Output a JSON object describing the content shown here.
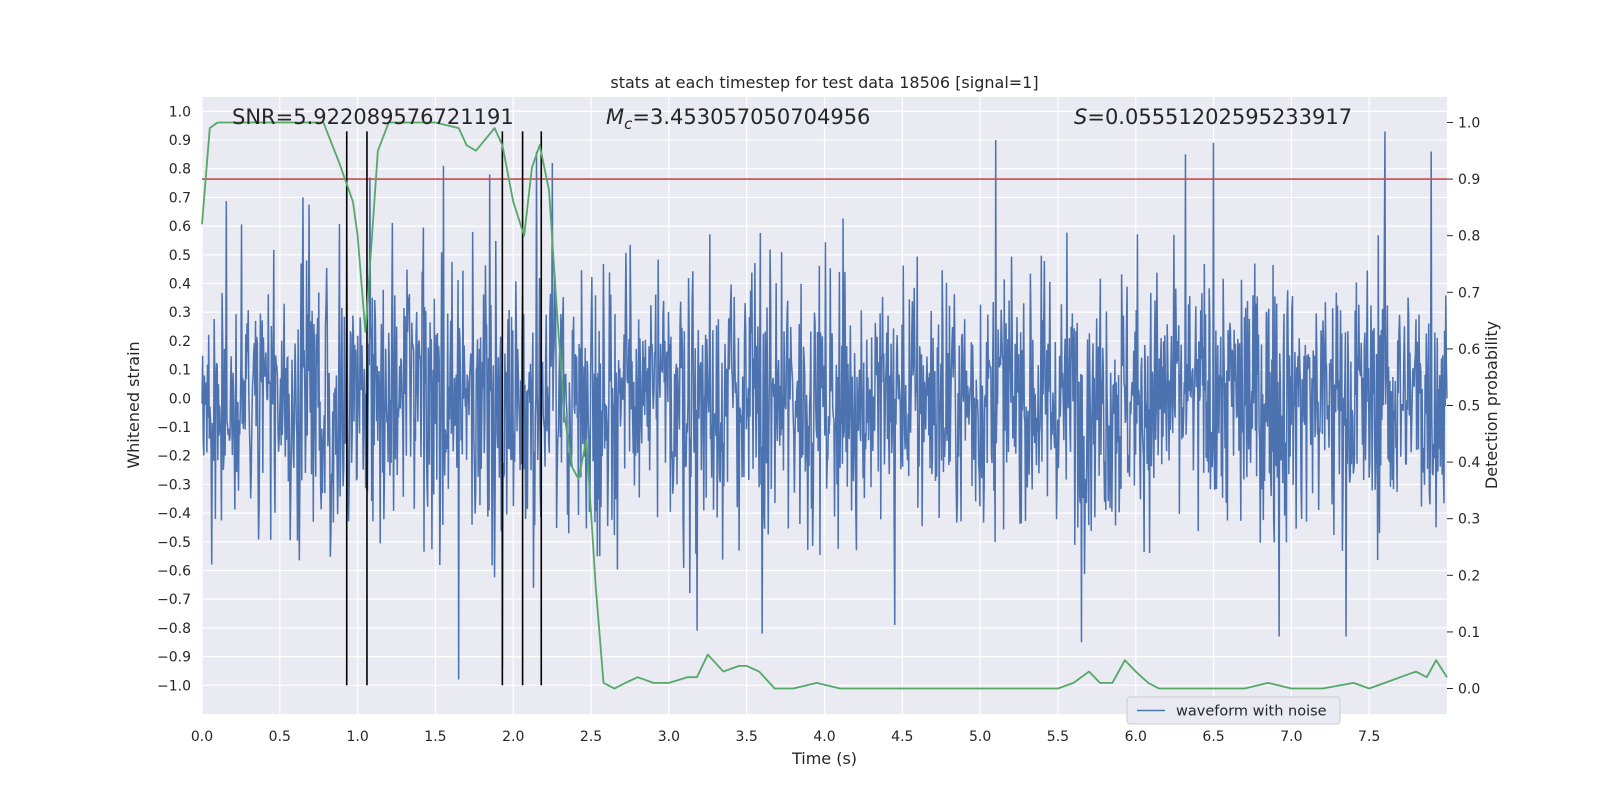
{
  "chart_data": {
    "type": "line",
    "title": "stats at each timestep for test data 18506 [signal=1]",
    "xlabel": "Time (s)",
    "ylabel": "Whitened strain",
    "y2label": "Detection probability",
    "xlim": [
      0,
      8
    ],
    "ylim": [
      -1.1,
      1.05
    ],
    "y2lim": [
      -0.045,
      1.045
    ],
    "x_ticks": [
      "0.0",
      "0.5",
      "1.0",
      "1.5",
      "2.0",
      "2.5",
      "3.0",
      "3.5",
      "4.0",
      "4.5",
      "5.0",
      "5.5",
      "6.0",
      "6.5",
      "7.0",
      "7.5"
    ],
    "y_ticks": [
      "1.0",
      "0.9",
      "0.8",
      "0.7",
      "0.6",
      "0.5",
      "0.4",
      "0.3",
      "0.2",
      "0.1",
      "0.0",
      "-0.1",
      "-0.2",
      "-0.3",
      "-0.4",
      "-0.5",
      "-0.6",
      "-0.7",
      "-0.8",
      "-0.9",
      "-1.0"
    ],
    "y2_ticks": [
      "1.0",
      "0.9",
      "0.8",
      "0.7",
      "0.6",
      "0.5",
      "0.4",
      "0.3",
      "0.2",
      "0.1",
      "0.0"
    ],
    "grid": true,
    "legend_position": "lower-right",
    "colors": {
      "waveform": "#4c72b0",
      "probability": "#55a868",
      "threshold": "#c44e52",
      "event_lines": "#000000",
      "axes_bg": "#eaeaf2",
      "grid": "#ffffff"
    },
    "annotations": {
      "snr": "SNR=5.922089576721191",
      "mc_symbol": "M",
      "mc_sub": "c",
      "mc_value": "=3.453057050704956",
      "s_symbol": "S",
      "s_value": "=0.05551202595233917"
    },
    "series": [
      {
        "name": "waveform with noise",
        "axis": "left",
        "duration": 8,
        "samples": 2048,
        "typical_envelope": 0.45,
        "peaks": [
          {
            "x": 0.65,
            "y": 0.7
          },
          {
            "x": 1.08,
            "y": 0.77
          },
          {
            "x": 1.55,
            "y": 0.81
          },
          {
            "x": 1.65,
            "y": -0.98
          },
          {
            "x": 1.85,
            "y": 0.78
          },
          {
            "x": 1.93,
            "y": -0.94
          },
          {
            "x": 2.15,
            "y": 0.86
          },
          {
            "x": 2.25,
            "y": 0.82
          },
          {
            "x": 3.18,
            "y": -0.81
          },
          {
            "x": 3.6,
            "y": -0.82
          },
          {
            "x": 4.45,
            "y": -0.79
          },
          {
            "x": 5.1,
            "y": 0.9
          },
          {
            "x": 5.65,
            "y": -0.85
          },
          {
            "x": 6.32,
            "y": 0.85
          },
          {
            "x": 6.5,
            "y": 0.89
          },
          {
            "x": 6.92,
            "y": -0.83
          },
          {
            "x": 7.35,
            "y": -0.83
          },
          {
            "x": 7.6,
            "y": 0.93
          },
          {
            "x": 7.9,
            "y": 0.86
          }
        ]
      },
      {
        "name": "",
        "axis": "right",
        "x": [
          0.0,
          0.05,
          0.1,
          0.2,
          0.4,
          0.6,
          0.78,
          0.88,
          0.97,
          1.0,
          1.05,
          1.13,
          1.2,
          1.4,
          1.5,
          1.65,
          1.7,
          1.76,
          1.82,
          1.88,
          1.93,
          2.0,
          2.07,
          2.12,
          2.17,
          2.23,
          2.28,
          2.33,
          2.38,
          2.42,
          2.47,
          2.53,
          2.58,
          2.65,
          2.72,
          2.8,
          2.9,
          3.0,
          3.12,
          3.18,
          3.25,
          3.35,
          3.45,
          3.5,
          3.58,
          3.68,
          3.8,
          3.95,
          4.1,
          4.3,
          4.5,
          4.7,
          4.9,
          5.1,
          5.3,
          5.5,
          5.6,
          5.7,
          5.77,
          5.85,
          5.93,
          6.0,
          6.08,
          6.15,
          6.3,
          6.5,
          6.7,
          6.85,
          7.0,
          7.2,
          7.4,
          7.5,
          7.6,
          7.7,
          7.8,
          7.87,
          7.93,
          8.0
        ],
        "y": [
          0.82,
          0.99,
          1.0,
          1.0,
          1.0,
          1.0,
          1.0,
          0.93,
          0.86,
          0.8,
          0.63,
          0.95,
          1.0,
          1.0,
          1.0,
          0.99,
          0.96,
          0.95,
          0.97,
          0.99,
          0.96,
          0.86,
          0.8,
          0.92,
          0.96,
          0.88,
          0.67,
          0.48,
          0.39,
          0.37,
          0.44,
          0.18,
          0.01,
          0.0,
          0.01,
          0.02,
          0.01,
          0.01,
          0.02,
          0.02,
          0.06,
          0.03,
          0.04,
          0.04,
          0.03,
          0.0,
          0.0,
          0.01,
          0.0,
          0.0,
          0.0,
          0.0,
          0.0,
          0.0,
          0.0,
          0.0,
          0.01,
          0.03,
          0.01,
          0.01,
          0.05,
          0.03,
          0.01,
          0.0,
          0.0,
          0.0,
          0.0,
          0.01,
          0.0,
          0.0,
          0.01,
          0.0,
          0.01,
          0.02,
          0.03,
          0.02,
          0.05,
          0.02
        ]
      },
      {
        "name": "",
        "axis": "right",
        "kind": "threshold",
        "y": 0.9
      }
    ],
    "event_lines": {
      "x": [
        0.93,
        1.06,
        1.93,
        2.06,
        2.18
      ],
      "ymin": -1.0,
      "ymax": 0.93
    }
  }
}
